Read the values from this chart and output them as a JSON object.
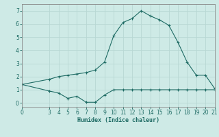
{
  "xlabel": "Humidex (Indice chaleur)",
  "background_color": "#ceeae6",
  "line_color": "#1e6b64",
  "grid_color": "#b8d8d4",
  "spine_color": "#888888",
  "xlim": [
    0,
    21
  ],
  "ylim": [
    -0.3,
    7.5
  ],
  "xticks": [
    0,
    3,
    4,
    5,
    6,
    7,
    8,
    9,
    10,
    11,
    12,
    13,
    14,
    15,
    16,
    17,
    18,
    19,
    20,
    21
  ],
  "yticks": [
    0,
    1,
    2,
    3,
    4,
    5,
    6,
    7
  ],
  "series1_x": [
    0,
    3,
    4,
    5,
    6,
    7,
    8,
    9,
    10,
    11,
    12,
    13,
    14,
    15,
    16,
    17,
    18,
    19,
    20,
    21
  ],
  "series1_y": [
    1.4,
    0.9,
    0.75,
    0.35,
    0.5,
    0.05,
    0.05,
    0.6,
    1.0,
    1.0,
    1.0,
    1.0,
    1.0,
    1.0,
    1.0,
    1.0,
    1.0,
    1.0,
    1.0,
    1.0
  ],
  "series2_x": [
    0,
    3,
    4,
    5,
    6,
    7,
    8,
    9,
    10,
    11,
    12,
    13,
    14,
    15,
    16,
    17,
    18,
    19,
    20,
    21
  ],
  "series2_y": [
    1.4,
    1.8,
    2.0,
    2.1,
    2.2,
    2.3,
    2.5,
    3.1,
    5.1,
    6.1,
    6.4,
    7.0,
    6.6,
    6.3,
    5.9,
    4.6,
    3.1,
    2.1,
    2.1,
    1.1
  ]
}
